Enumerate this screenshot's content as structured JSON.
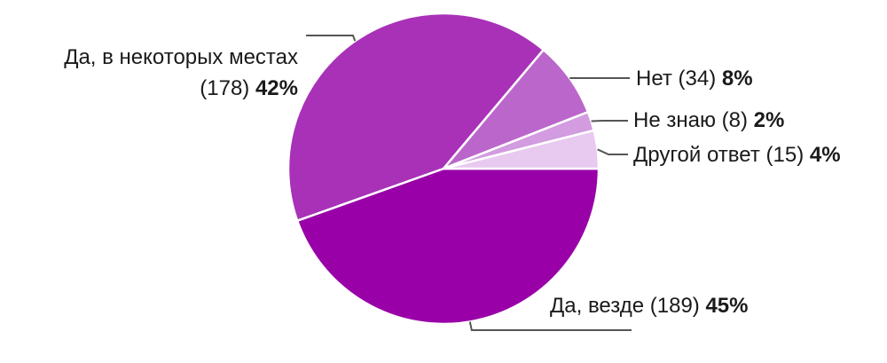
{
  "chart_data": {
    "type": "pie",
    "title": "",
    "series": [
      {
        "slices": [
          {
            "label": "Да, везде",
            "count": "189",
            "count_text": "(189)",
            "value": 45,
            "value_text": "45%",
            "color": "#9900a8"
          },
          {
            "label": "Да, в некоторых местах",
            "count": "178",
            "count_text": "(178)",
            "value": 42,
            "value_text": "42%",
            "color": "#a831b8"
          },
          {
            "label": "Нет",
            "count": "34",
            "count_text": "(34)",
            "value": 8,
            "value_text": "8%",
            "color": "#bb66cb"
          },
          {
            "label": "Не знаю",
            "count": "8",
            "count_text": "(8)",
            "value": 2,
            "value_text": "2%",
            "color": "#d39be0"
          },
          {
            "label": "Другой ответ",
            "count": "15",
            "count_text": "(15)",
            "value": 4,
            "value_text": "4%",
            "color": "#e8c9ef"
          }
        ]
      }
    ],
    "start": "3 o'clock",
    "direction": "clockwise",
    "legend": "none",
    "labels": "outside with leader lines",
    "leader_color": "#555555"
  }
}
